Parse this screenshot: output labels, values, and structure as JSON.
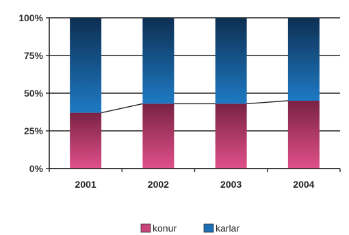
{
  "chart_data": {
    "type": "bar",
    "stacked": true,
    "percent_stacked": true,
    "categories": [
      "2001",
      "2002",
      "2003",
      "2004"
    ],
    "series": [
      {
        "name": "konur",
        "values": [
          37,
          43,
          43,
          45
        ],
        "color": "#c8457a"
      },
      {
        "name": "karlar",
        "values": [
          63,
          57,
          57,
          55
        ],
        "color": "#1a6fb5"
      }
    ],
    "y_ticks": [
      0,
      25,
      50,
      75,
      100
    ],
    "y_tick_labels": [
      "0%",
      "25%",
      "50%",
      "75%",
      "100%"
    ],
    "ylim": [
      0,
      100
    ],
    "grid": true,
    "series_lines": true,
    "legend_position": "bottom"
  }
}
